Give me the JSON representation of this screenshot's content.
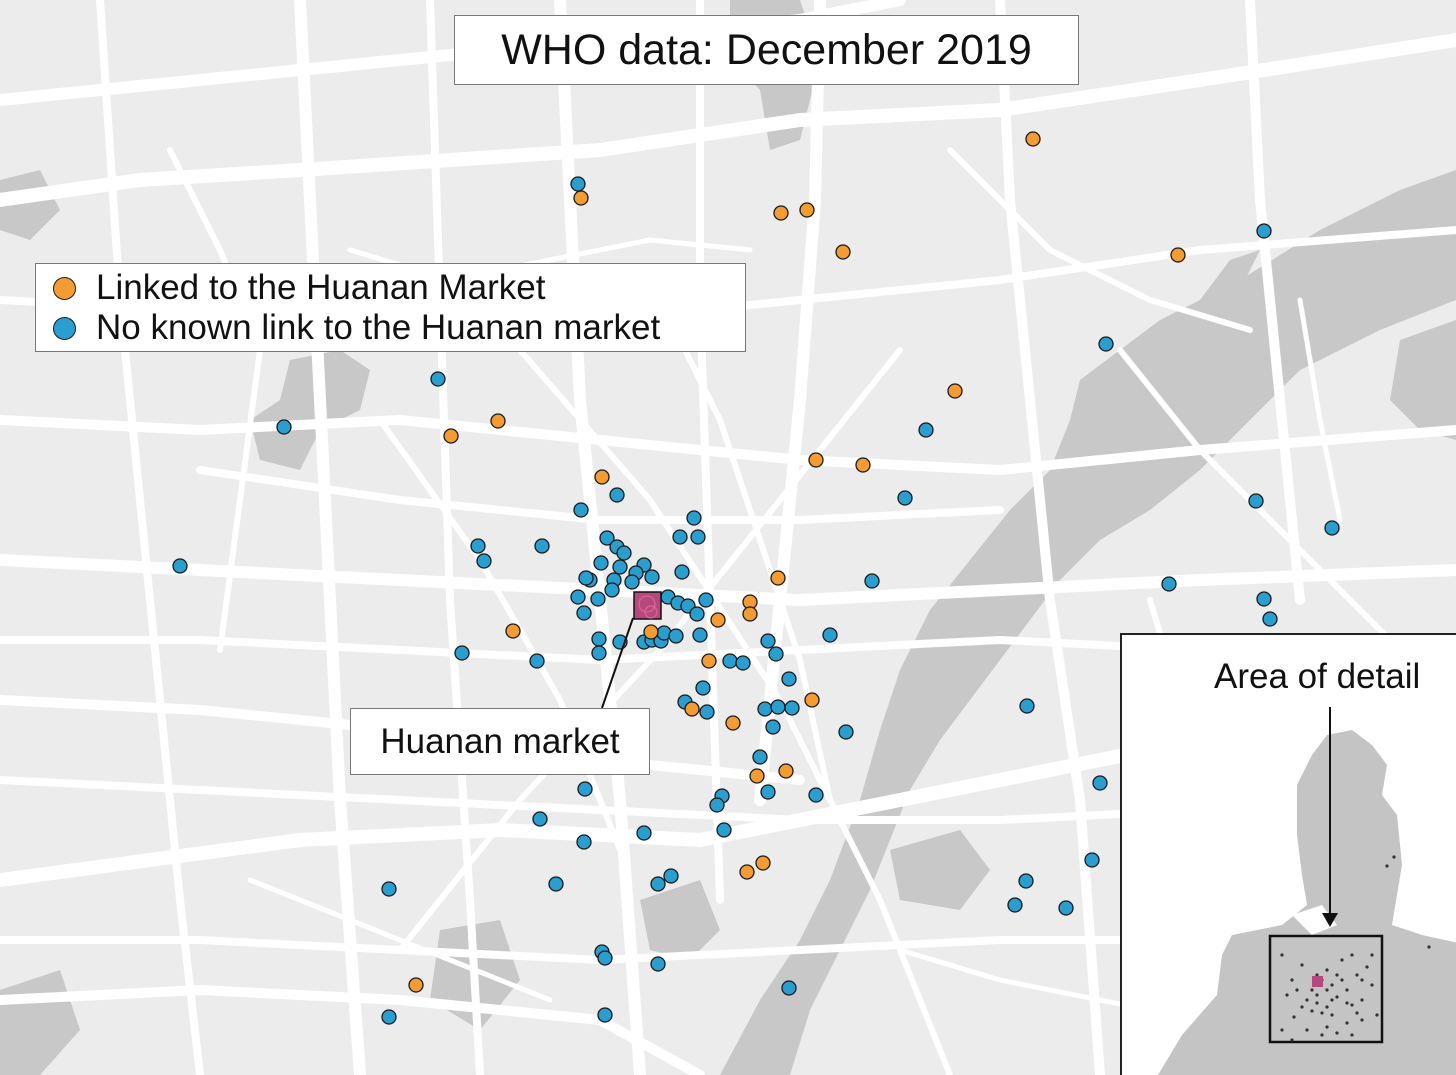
{
  "title": "WHO data: December 2019",
  "legend": {
    "items": [
      {
        "label": "Linked to the Huanan Market",
        "color": "#f39c34"
      },
      {
        "label": "No known link to the Huanan market",
        "color": "#2a9fcf"
      }
    ]
  },
  "market_label": "Huanan market",
  "market_color": "#b5497b",
  "inset": {
    "label": "Area of detail"
  },
  "colors": {
    "background": "#ececec",
    "roads": "#ffffff",
    "water": "#c8c8c8",
    "linked": "#f39c34",
    "unlinked": "#2a9fcf"
  }
}
